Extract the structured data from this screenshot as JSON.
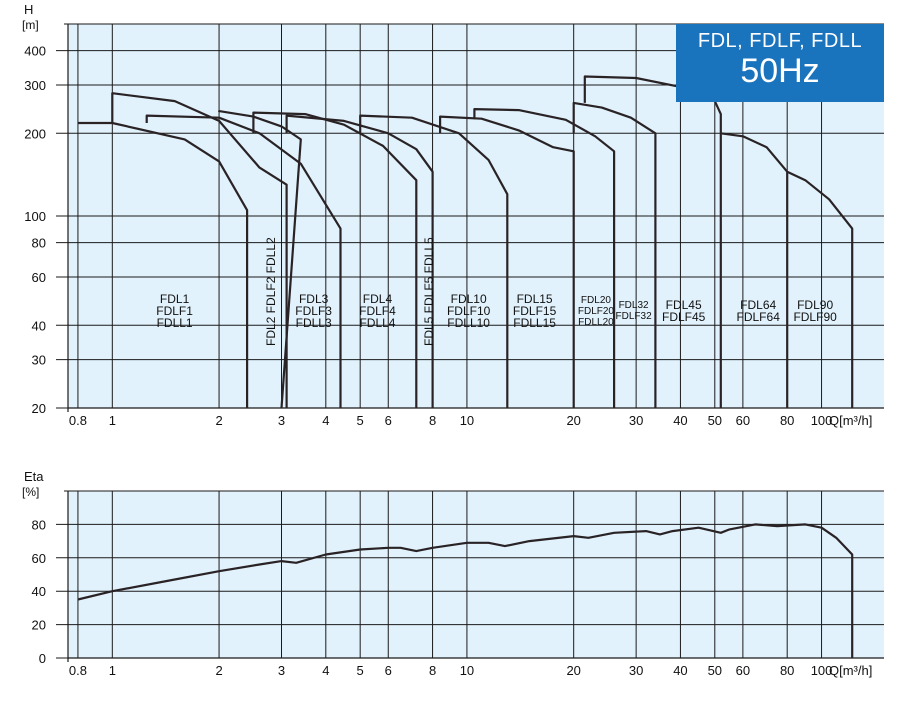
{
  "title_box": {
    "line1": "FDL, FDLF, FDLL",
    "line2": "50Hz"
  },
  "chart_data": [
    {
      "type": "line",
      "xlabel": "Q[m³/h]",
      "ylabel": "H",
      "yunit": "[m]",
      "xscale": "log",
      "yscale": "log",
      "xlim": [
        0.75,
        150
      ],
      "ylim": [
        20,
        500
      ],
      "xticks": [
        0.8,
        1,
        2,
        3,
        4,
        5,
        6,
        8,
        10,
        20,
        30,
        40,
        50,
        60,
        80,
        100
      ],
      "xtick_labels": [
        "0.8",
        "1",
        "2",
        "3",
        "4",
        "5",
        "6",
        "8",
        "10",
        "20",
        "30",
        "40",
        "50",
        "60",
        "80",
        "100"
      ],
      "yticks": [
        20,
        30,
        40,
        60,
        80,
        100,
        200,
        300,
        400
      ],
      "ytick_labels": [
        "20",
        "30",
        "40",
        "60",
        "80",
        "100",
        "200",
        "300",
        "400"
      ],
      "grid": true,
      "series": [
        {
          "name": "FDL1 FDLF1 FDLL1",
          "points": [
            [
              0.8,
              218
            ],
            [
              1.0,
              218
            ],
            [
              1.6,
              190
            ],
            [
              2.0,
              158
            ],
            [
              2.4,
              105
            ],
            [
              2.4,
              20
            ]
          ]
        },
        {
          "name": "FDL1 FDLF1 FDLL1 (max)",
          "points": [
            [
              1.0,
              218
            ],
            [
              1.0,
              280
            ],
            [
              1.5,
              262
            ],
            [
              2.0,
              222
            ],
            [
              2.6,
              150
            ],
            [
              3.1,
              130
            ],
            [
              3.1,
              20
            ]
          ]
        },
        {
          "name": "FDL2 FDLF2 FDLL2",
          "points": [
            [
              1.25,
              218
            ],
            [
              1.25,
              232
            ],
            [
              2.0,
              228
            ],
            [
              2.6,
              200
            ],
            [
              3.4,
              155
            ],
            [
              4.4,
              90
            ],
            [
              4.4,
              20
            ]
          ]
        },
        {
          "name": "FDL2 FDLF2 FDLL2 (max)",
          "points": [
            [
              2.0,
              242
            ],
            [
              2.0,
              241
            ],
            [
              2.5,
              230
            ],
            [
              3.0,
              212
            ],
            [
              3.4,
              190
            ],
            [
              3.0,
              20
            ]
          ]
        },
        {
          "name": "FDL3 FDLF3 FDLL3",
          "points": [
            [
              2.5,
              200
            ],
            [
              2.5,
              238
            ],
            [
              3.5,
              235
            ],
            [
              4.5,
              215
            ],
            [
              5.8,
              180
            ],
            [
              7.2,
              135
            ],
            [
              7.2,
              20
            ]
          ]
        },
        {
          "name": "FDL4 FDLF4 FDLL4",
          "points": [
            [
              3.1,
              200
            ],
            [
              3.1,
              232
            ],
            [
              4.5,
              222
            ],
            [
              6.0,
              200
            ],
            [
              7.2,
              175
            ],
            [
              8.0,
              145
            ],
            [
              8.0,
              20
            ]
          ]
        },
        {
          "name": "FDL5 FDLF5 FDLL5",
          "points": [
            [
              5.0,
              200
            ],
            [
              5.0,
              232
            ],
            [
              7.0,
              228
            ],
            [
              9.5,
              200
            ],
            [
              11.5,
              160
            ],
            [
              13.0,
              120
            ],
            [
              13.0,
              20
            ]
          ]
        },
        {
          "name": "FDL10 FDLF10 FDLL10",
          "points": [
            [
              8.4,
              200
            ],
            [
              8.4,
              230
            ],
            [
              11.0,
              226
            ],
            [
              14.0,
              205
            ],
            [
              17.5,
              178
            ],
            [
              20.0,
              172
            ],
            [
              20.0,
              20
            ]
          ]
        },
        {
          "name": "FDL15 FDLF15 FDLL15",
          "points": [
            [
              10.5,
              225
            ],
            [
              10.5,
              245
            ],
            [
              14.0,
              243
            ],
            [
              19.0,
              224
            ],
            [
              23.0,
              195
            ],
            [
              26.0,
              172
            ],
            [
              26.0,
              20
            ]
          ]
        },
        {
          "name": "FDL20 FDLF20 FDLL20",
          "points": [
            [
              20.0,
              200
            ],
            [
              20.0,
              258
            ],
            [
              24.0,
              248
            ],
            [
              29.0,
              228
            ],
            [
              34.0,
              200
            ],
            [
              34.0,
              20
            ]
          ]
        },
        {
          "name": "FDL32 FDLF32",
          "points": [
            [
              21.5,
              258
            ],
            [
              21.5,
              322
            ],
            [
              30.0,
              318
            ],
            [
              40.0,
              295
            ],
            [
              50.0,
              262
            ],
            [
              52.0,
              235
            ],
            [
              52.0,
              20
            ]
          ]
        },
        {
          "name": "FDL45 FDLF45 / FDL64 FDLF64",
          "points": [
            [
              52.0,
              200
            ],
            [
              60.0,
              195
            ],
            [
              70.0,
              178
            ],
            [
              80.0,
              145
            ],
            [
              80.0,
              20
            ]
          ]
        },
        {
          "name": "FDL90 FDLF90",
          "points": [
            [
              80.0,
              145
            ],
            [
              90.0,
              135
            ],
            [
              105.0,
              115
            ],
            [
              122.0,
              90
            ],
            [
              122.0,
              20
            ]
          ]
        }
      ],
      "group_labels": [
        {
          "lines": [
            "FDL1",
            "FDLF1",
            "FDLL1"
          ],
          "q": 1.5,
          "h": 45
        },
        {
          "lines": [
            "FDL3",
            "FDLF3",
            "FDLL3"
          ],
          "q": 3.7,
          "h": 45
        },
        {
          "lines": [
            "FDL4",
            "FDLF4",
            "FDLL4"
          ],
          "q": 5.6,
          "h": 45
        },
        {
          "lines": [
            "FDL10",
            "FDLF10",
            "FDLL10"
          ],
          "q": 10.1,
          "h": 45
        },
        {
          "lines": [
            "FDL15",
            "FDLF15",
            "FDLL15"
          ],
          "q": 15.5,
          "h": 45
        },
        {
          "lines": [
            "FDL20",
            "FDLF20",
            "FDLL20"
          ],
          "q": 23.1,
          "h": 45,
          "small": true
        },
        {
          "lines": [
            "FDL32",
            "FDLF32"
          ],
          "q": 29.5,
          "h": 45,
          "small": true
        },
        {
          "lines": [
            "FDL45",
            "FDLF45"
          ],
          "q": 40.8,
          "h": 45
        },
        {
          "lines": [
            "FDL64",
            "FDLF64"
          ],
          "q": 66.2,
          "h": 45
        },
        {
          "lines": [
            "FDL90",
            "FDLF90"
          ],
          "q": 95.8,
          "h": 45
        }
      ],
      "vertical_labels": [
        {
          "text": "FDL2 FDLF2 FDLL2",
          "q": 2.8,
          "h": 34
        },
        {
          "text": "FDL5 FDLF5 FDLL5",
          "q": 7.8,
          "h": 34
        }
      ]
    },
    {
      "type": "line",
      "xlabel": "Q[m³/h]",
      "ylabel": "Eta",
      "yunit": "[%]",
      "xscale": "log",
      "xlim": [
        0.75,
        150
      ],
      "ylim": [
        0,
        100
      ],
      "xticks": [
        0.8,
        1,
        2,
        3,
        4,
        5,
        6,
        8,
        10,
        20,
        30,
        40,
        50,
        60,
        80,
        100
      ],
      "xtick_labels": [
        "0.8",
        "1",
        "2",
        "3",
        "4",
        "5",
        "6",
        "8",
        "10",
        "20",
        "30",
        "40",
        "50",
        "60",
        "80",
        "100"
      ],
      "yticks": [
        0,
        20,
        40,
        60,
        80
      ],
      "ytick_labels": [
        "0",
        "20",
        "40",
        "60",
        "80"
      ],
      "grid": true,
      "series": [
        {
          "name": "Eta",
          "points": [
            [
              0.8,
              35
            ],
            [
              1.0,
              40
            ],
            [
              1.5,
              47
            ],
            [
              2.0,
              52
            ],
            [
              2.6,
              56
            ],
            [
              3.0,
              58
            ],
            [
              3.3,
              57
            ],
            [
              4.0,
              62
            ],
            [
              5.0,
              65
            ],
            [
              6.0,
              66
            ],
            [
              6.5,
              66
            ],
            [
              7.2,
              64
            ],
            [
              8.0,
              66
            ],
            [
              10.0,
              69
            ],
            [
              11.5,
              69
            ],
            [
              12.8,
              67
            ],
            [
              15.0,
              70
            ],
            [
              20.0,
              73
            ],
            [
              22.0,
              72
            ],
            [
              26.0,
              75
            ],
            [
              32.0,
              76
            ],
            [
              35.0,
              74
            ],
            [
              38.0,
              76
            ],
            [
              45.0,
              78
            ],
            [
              52.0,
              75
            ],
            [
              55.0,
              77
            ],
            [
              65.0,
              80
            ],
            [
              75.0,
              79
            ],
            [
              90.0,
              80
            ],
            [
              100.0,
              78
            ],
            [
              110.0,
              72
            ],
            [
              122.0,
              62
            ],
            [
              122.0,
              0
            ]
          ]
        }
      ]
    }
  ]
}
